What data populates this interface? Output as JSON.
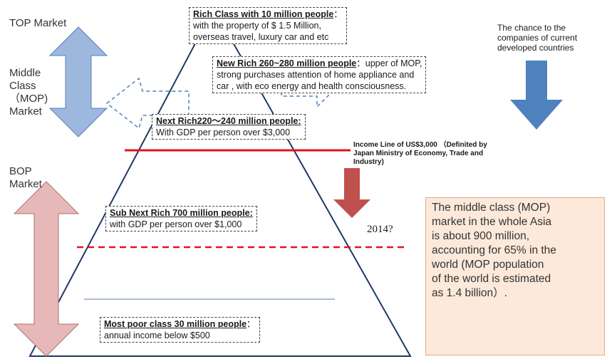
{
  "markets": {
    "top": [
      "TOP Market"
    ],
    "middle": [
      "Middle",
      "Class",
      "（MOP)",
      "Market"
    ],
    "bop": [
      "BOP",
      "Market"
    ]
  },
  "boxes": [
    {
      "title": "Rich Class  with 10 million people",
      "suffix": "：",
      "lines": [
        "with the property of  $ 1.5 Million,",
        "overseas travel, luxury car and etc"
      ]
    },
    {
      "title": "New Rich 260~280 million people",
      "suffix": "：upper of  MOP,",
      "lines": [
        "strong purchases attention of home appliance and",
        "car , with eco energy and health consciousness."
      ]
    },
    {
      "title": "Next Rich220～240 million people:",
      "suffix": "",
      "lines": [
        "With GDP  per person over $3,000"
      ]
    },
    {
      "title": "Sub Next Rich 700 million people:",
      "suffix": "",
      "lines": [
        "with GDP per person over $1,000"
      ]
    },
    {
      "title": "Most poor class 30 million people",
      "suffix": "：",
      "lines": [
        "annual income below $500"
      ]
    }
  ],
  "income_line": [
    "Income Line of US$3,000 （Definited  by",
    "Japan Ministry of Economy, Trade and",
    "Industry)"
  ],
  "chance": [
    "The chance to the",
    "companies of current",
    "developed countries"
  ],
  "year": "2014?",
  "note": [
    "The middle class (MOP)",
    "market in the whole Asia",
    "is about  900 million,",
    "accounting for 65%  in the",
    "world (MOP population",
    "of the world  is estimated",
    "as 1.4 billion）."
  ]
}
